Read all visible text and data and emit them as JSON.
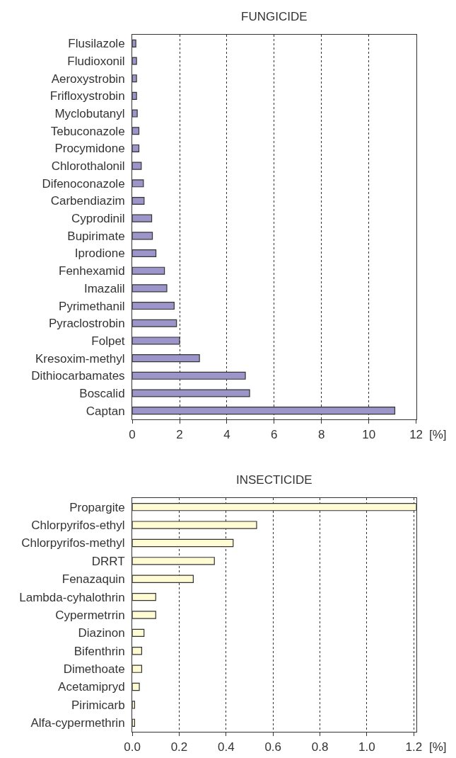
{
  "chart_data": [
    {
      "type": "bar",
      "orientation": "horizontal",
      "title": "FUNGICIDE",
      "xlabel": "[%]",
      "color": "#9c95ca",
      "grid": "x",
      "categories": [
        "Flusilazole",
        "Fludioxonil",
        "Aeroxystrobin",
        "Frifloxystrobin",
        "Myclobutanyl",
        "Tebuconazole",
        "Procymidone",
        "Chlorothalonil",
        "Difenoconazole",
        "Carbendiazim",
        "Cyprodinil",
        "Bupirimate",
        "Iprodione",
        "Fenhexamid",
        "Imazalil",
        "Pyrimethanil",
        "Pyraclostrobin",
        "Folpet",
        "Kresoxim-methyl",
        "Dithiocarbamates",
        "Boscalid",
        "Captan"
      ],
      "values": [
        0.15,
        0.18,
        0.18,
        0.18,
        0.21,
        0.28,
        0.28,
        0.38,
        0.47,
        0.5,
        0.82,
        0.85,
        1.0,
        1.36,
        1.46,
        1.77,
        1.87,
        2.0,
        2.84,
        4.78,
        4.96,
        11.1
      ],
      "xlim": [
        0,
        12
      ],
      "xticks": [
        0,
        2,
        4,
        6,
        8,
        10,
        12
      ]
    },
    {
      "type": "bar",
      "orientation": "horizontal",
      "title": "INSECTICIDE",
      "xlabel": "[%]",
      "color": "#fffbd3",
      "grid": "x",
      "categories": [
        "Propargite",
        "Chlorpyrifos-ethyl",
        "Chlorpyrifos-methyl",
        "DRRT",
        "Fenazaquin",
        "Lambda-cyhalothrin",
        "Cypermetrrin",
        "Diazinon",
        "Bifenthrin",
        "Dimethoate",
        "Acetamipryd",
        "Pirimicarb",
        "Alfa-cypermethrin"
      ],
      "values": [
        1.21,
        0.53,
        0.43,
        0.35,
        0.26,
        0.1,
        0.1,
        0.05,
        0.04,
        0.04,
        0.03,
        0.01,
        0.01
      ],
      "xlim": [
        0,
        1.21
      ],
      "xticks": [
        {
          "value": 0,
          "label": "0.0"
        },
        0.2,
        0.4,
        0.6,
        0.8,
        {
          "value": 1,
          "label": "1.0"
        },
        1.2
      ]
    }
  ]
}
